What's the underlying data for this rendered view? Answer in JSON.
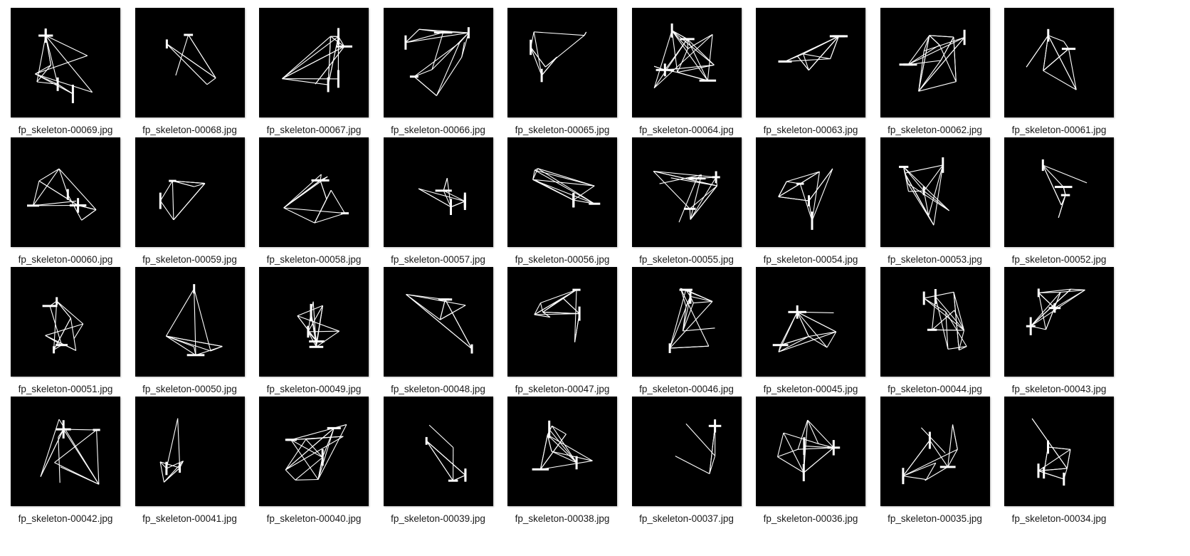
{
  "files": [
    "fp_skeleton-00069.jpg",
    "fp_skeleton-00068.jpg",
    "fp_skeleton-00067.jpg",
    "fp_skeleton-00066.jpg",
    "fp_skeleton-00065.jpg",
    "fp_skeleton-00064.jpg",
    "fp_skeleton-00063.jpg",
    "fp_skeleton-00062.jpg",
    "fp_skeleton-00061.jpg",
    "fp_skeleton-00060.jpg",
    "fp_skeleton-00059.jpg",
    "fp_skeleton-00058.jpg",
    "fp_skeleton-00057.jpg",
    "fp_skeleton-00056.jpg",
    "fp_skeleton-00055.jpg",
    "fp_skeleton-00054.jpg",
    "fp_skeleton-00053.jpg",
    "fp_skeleton-00052.jpg",
    "fp_skeleton-00051.jpg",
    "fp_skeleton-00050.jpg",
    "fp_skeleton-00049.jpg",
    "fp_skeleton-00048.jpg",
    "fp_skeleton-00047.jpg",
    "fp_skeleton-00046.jpg",
    "fp_skeleton-00045.jpg",
    "fp_skeleton-00044.jpg",
    "fp_skeleton-00043.jpg",
    "fp_skeleton-00042.jpg",
    "fp_skeleton-00041.jpg",
    "fp_skeleton-00040.jpg",
    "fp_skeleton-00039.jpg",
    "fp_skeleton-00038.jpg",
    "fp_skeleton-00037.jpg",
    "fp_skeleton-00036.jpg",
    "fp_skeleton-00035.jpg",
    "fp_skeleton-00034.jpg"
  ],
  "thumbnail_background": "#000000",
  "stroke_color": "#ffffff",
  "label_color": "#1a1a1a"
}
